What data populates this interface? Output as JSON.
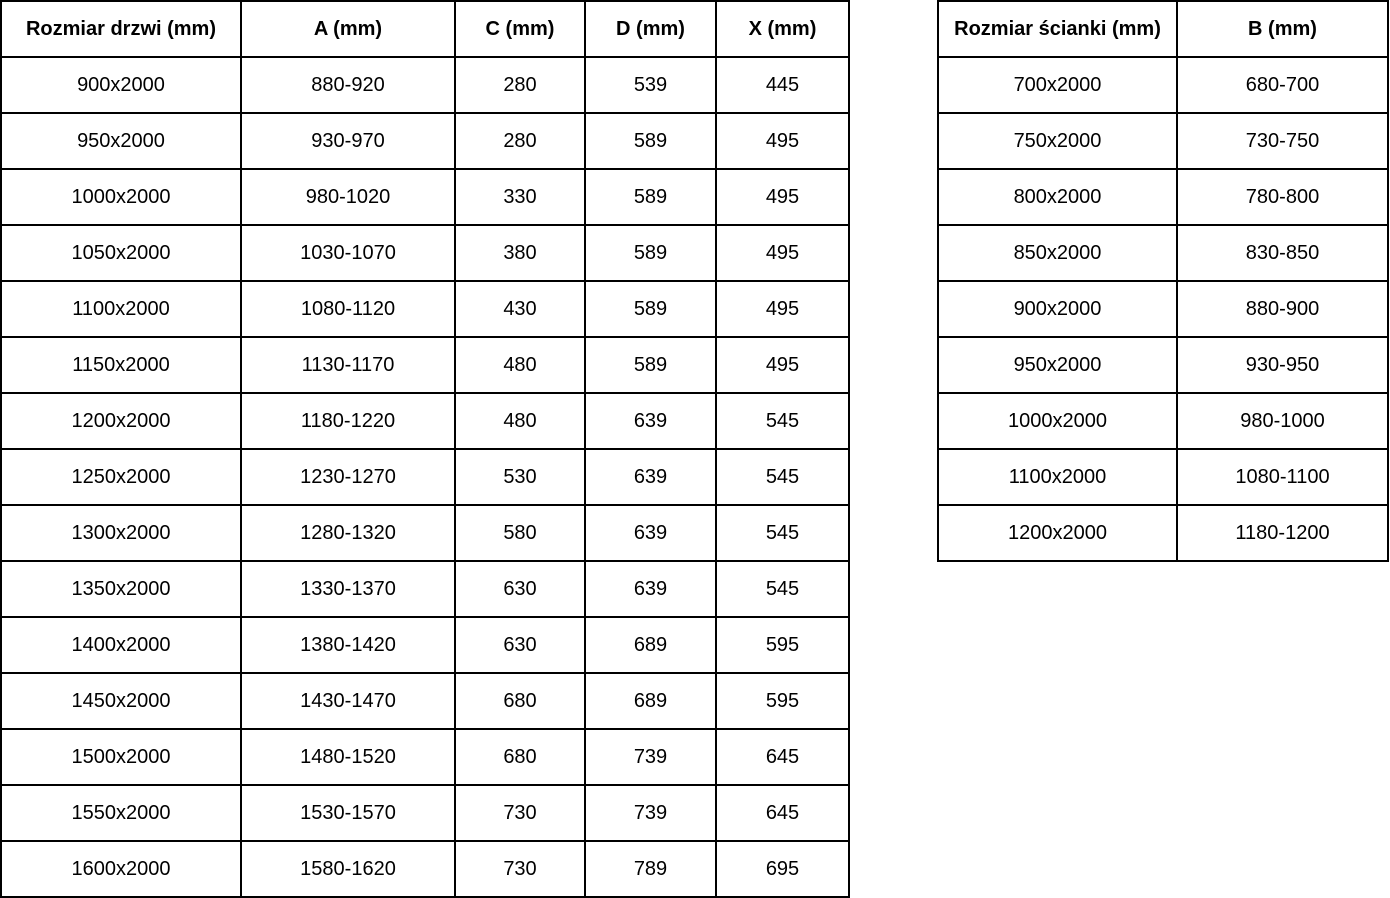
{
  "tables": [
    {
      "name": "door-size-table",
      "headers": [
        "Rozmiar drzwi (mm)",
        "A (mm)",
        "C (mm)",
        "D (mm)",
        "X (mm)"
      ],
      "rows": [
        [
          "900x2000",
          "880-920",
          "280",
          "539",
          "445"
        ],
        [
          "950x2000",
          "930-970",
          "280",
          "589",
          "495"
        ],
        [
          "1000x2000",
          "980-1020",
          "330",
          "589",
          "495"
        ],
        [
          "1050x2000",
          "1030-1070",
          "380",
          "589",
          "495"
        ],
        [
          "1100x2000",
          "1080-1120",
          "430",
          "589",
          "495"
        ],
        [
          "1150x2000",
          "1130-1170",
          "480",
          "589",
          "495"
        ],
        [
          "1200x2000",
          "1180-1220",
          "480",
          "639",
          "545"
        ],
        [
          "1250x2000",
          "1230-1270",
          "530",
          "639",
          "545"
        ],
        [
          "1300x2000",
          "1280-1320",
          "580",
          "639",
          "545"
        ],
        [
          "1350x2000",
          "1330-1370",
          "630",
          "639",
          "545"
        ],
        [
          "1400x2000",
          "1380-1420",
          "630",
          "689",
          "595"
        ],
        [
          "1450x2000",
          "1430-1470",
          "680",
          "689",
          "595"
        ],
        [
          "1500x2000",
          "1480-1520",
          "680",
          "739",
          "645"
        ],
        [
          "1550x2000",
          "1530-1570",
          "730",
          "739",
          "645"
        ],
        [
          "1600x2000",
          "1580-1620",
          "730",
          "789",
          "695"
        ]
      ]
    },
    {
      "name": "wall-size-table",
      "headers": [
        "Rozmiar ścianki (mm)",
        "B (mm)"
      ],
      "rows": [
        [
          "700x2000",
          "680-700"
        ],
        [
          "750x2000",
          "730-750"
        ],
        [
          "800x2000",
          "780-800"
        ],
        [
          "850x2000",
          "830-850"
        ],
        [
          "900x2000",
          "880-900"
        ],
        [
          "950x2000",
          "930-950"
        ],
        [
          "1000x2000",
          "980-1000"
        ],
        [
          "1100x2000",
          "1080-1100"
        ],
        [
          "1200x2000",
          "1180-1200"
        ]
      ]
    }
  ],
  "colors": {
    "border": "#000000",
    "text": "#000000",
    "background": "#ffffff"
  },
  "chart_data": [
    {
      "type": "table",
      "title": "Rozmiar drzwi (mm)",
      "columns": [
        "Rozmiar drzwi (mm)",
        "A (mm)",
        "C (mm)",
        "D (mm)",
        "X (mm)"
      ],
      "rows": [
        [
          "900x2000",
          "880-920",
          "280",
          "539",
          "445"
        ],
        [
          "950x2000",
          "930-970",
          "280",
          "589",
          "495"
        ],
        [
          "1000x2000",
          "980-1020",
          "330",
          "589",
          "495"
        ],
        [
          "1050x2000",
          "1030-1070",
          "380",
          "589",
          "495"
        ],
        [
          "1100x2000",
          "1080-1120",
          "430",
          "589",
          "495"
        ],
        [
          "1150x2000",
          "1130-1170",
          "480",
          "589",
          "495"
        ],
        [
          "1200x2000",
          "1180-1220",
          "480",
          "639",
          "545"
        ],
        [
          "1250x2000",
          "1230-1270",
          "530",
          "639",
          "545"
        ],
        [
          "1300x2000",
          "1280-1320",
          "580",
          "639",
          "545"
        ],
        [
          "1350x2000",
          "1330-1370",
          "630",
          "639",
          "545"
        ],
        [
          "1400x2000",
          "1380-1420",
          "630",
          "689",
          "595"
        ],
        [
          "1450x2000",
          "1430-1470",
          "680",
          "689",
          "595"
        ],
        [
          "1500x2000",
          "1480-1520",
          "680",
          "739",
          "645"
        ],
        [
          "1550x2000",
          "1530-1570",
          "730",
          "739",
          "645"
        ],
        [
          "1600x2000",
          "1580-1620",
          "730",
          "789",
          "695"
        ]
      ]
    },
    {
      "type": "table",
      "title": "Rozmiar ścianki (mm)",
      "columns": [
        "Rozmiar ścianki (mm)",
        "B (mm)"
      ],
      "rows": [
        [
          "700x2000",
          "680-700"
        ],
        [
          "750x2000",
          "730-750"
        ],
        [
          "800x2000",
          "780-800"
        ],
        [
          "850x2000",
          "830-850"
        ],
        [
          "900x2000",
          "880-900"
        ],
        [
          "950x2000",
          "930-950"
        ],
        [
          "1000x2000",
          "980-1000"
        ],
        [
          "1100x2000",
          "1080-1100"
        ],
        [
          "1200x2000",
          "1180-1200"
        ]
      ]
    }
  ]
}
